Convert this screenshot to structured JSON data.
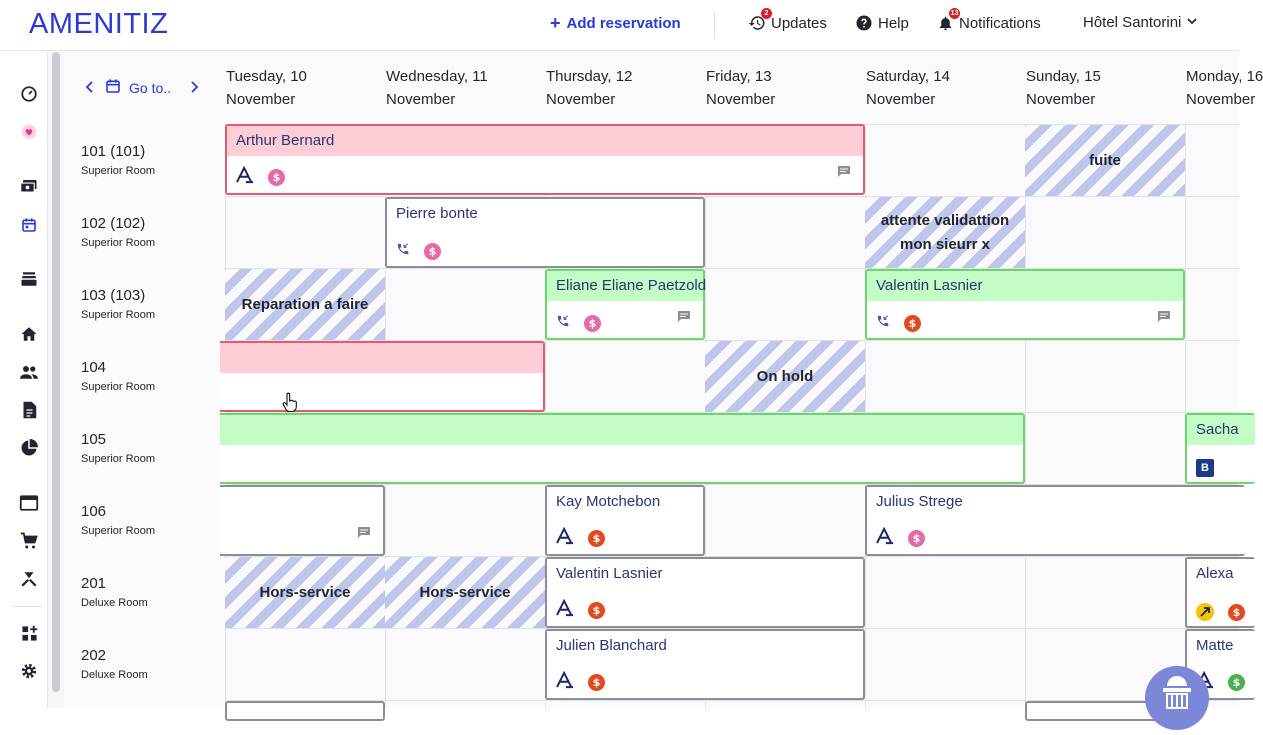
{
  "header": {
    "logo": "AMENITIZ",
    "add_reservation": "Add reservation",
    "updates_label": "Updates",
    "updates_count": "2",
    "help_label": "Help",
    "notifications_label": "Notifications",
    "notifications_count": "13",
    "hotel_name": "Hôtel Santorini"
  },
  "nav": {
    "goto_label": "Go to.."
  },
  "days": [
    {
      "weekday": "Tuesday, 10",
      "month": "November"
    },
    {
      "weekday": "Wednesday, 11",
      "month": "November"
    },
    {
      "weekday": "Thursday, 12",
      "month": "November"
    },
    {
      "weekday": "Friday, 13",
      "month": "November"
    },
    {
      "weekday": "Saturday, 14",
      "month": "November"
    },
    {
      "weekday": "Sunday, 15",
      "month": "November"
    },
    {
      "weekday": "Monday, 16",
      "month": "November"
    }
  ],
  "rooms": [
    {
      "num": "101 (101)",
      "type": "Superior Room"
    },
    {
      "num": "102 (102)",
      "type": "Superior Room"
    },
    {
      "num": "103 (103)",
      "type": "Superior Room"
    },
    {
      "num": "104",
      "type": "Superior Room"
    },
    {
      "num": "105",
      "type": "Superior Room"
    },
    {
      "num": "106",
      "type": "Superior Room"
    },
    {
      "num": "201",
      "type": "Deluxe Room"
    },
    {
      "num": "202",
      "type": "Deluxe Room"
    }
  ],
  "reservations": {
    "arthur": "Arthur Bernard",
    "pierre": "Pierre bonte",
    "eliane": "Eliane Eliane Paetzold",
    "valentin_103": "Valentin Lasnier",
    "sach": "Sacha",
    "kay": "Kay Motchebon",
    "julius": "Julius Strege",
    "valentin_201": "Valentin Lasnier",
    "alexa": "Alexa",
    "julien": "Julien Blanchard",
    "matte": "Matte"
  },
  "blocks": {
    "fuite": "fuite",
    "attente": "attente validattion mon sieurr x",
    "reparation": "Reparation a faire",
    "onhold": "On hold",
    "hors1": "Hors-service",
    "hors2": "Hors-service"
  },
  "colors": {
    "brand": "#2b3ad2",
    "red_border": "#e35a72",
    "green_border": "#6dd46e",
    "stripe": "#c0c6ea"
  }
}
